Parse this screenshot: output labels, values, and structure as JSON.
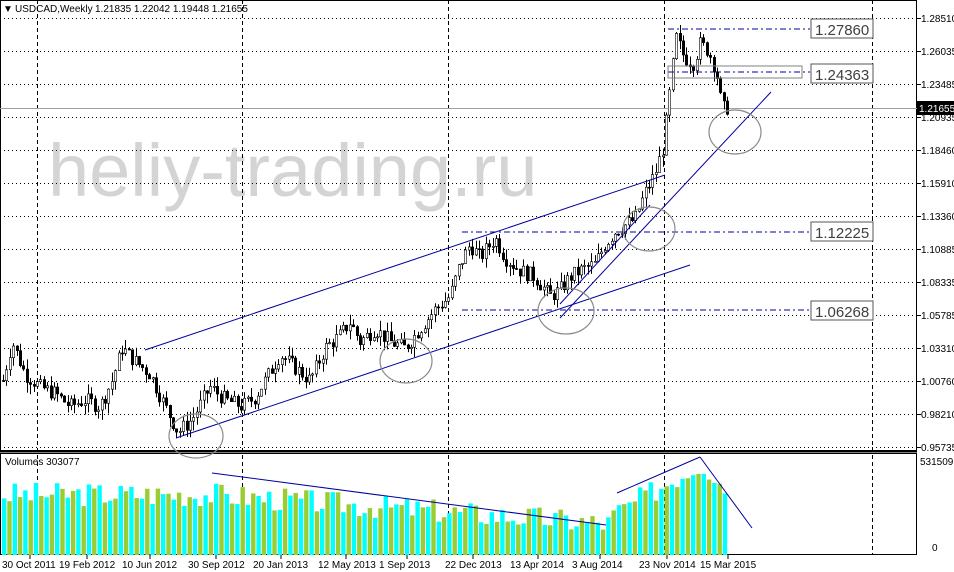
{
  "header": {
    "symbol": "USDCAD,Weekly",
    "ohlc": "1.21835 1.22042 1.19448 1.21655"
  },
  "watermark": "heliy-trading.ru",
  "volume_header": "Volumes 303077",
  "colors": {
    "background": "#ffffff",
    "grid": "#000000",
    "candle": "#000000",
    "trendline": "#0000a0",
    "level_line": "#0000a0",
    "volume_up": "#00ffff",
    "volume_down": "#9acd32",
    "watermark": "#d3d3d3",
    "circle": "#808080"
  },
  "price_axis": {
    "ticks": [
      "1.28510",
      "1.26035",
      "1.23485",
      "1.20935",
      "1.18460",
      "1.15910",
      "1.13360",
      "1.10885",
      "1.08335",
      "1.05785",
      "1.03310",
      "1.00760",
      "0.98210",
      "0.95735"
    ],
    "current_price": "1.21655"
  },
  "volume_axis": {
    "ticks": [
      "531509",
      "0"
    ]
  },
  "time_axis": {
    "labels": [
      "30 Oct 2011",
      "19 Feb 2012",
      "10 Jun 2012",
      "30 Sep 2012",
      "20 Jan 2013",
      "12 May 2013",
      "1 Sep 2013",
      "22 Dec 2013",
      "13 Apr 2014",
      "3 Aug 2014",
      "23 Nov 2014",
      "15 Mar 2015"
    ]
  },
  "levels": [
    {
      "label": "1.27860",
      "price": 1.2786
    },
    {
      "label": "1.24363",
      "price": 1.24363
    },
    {
      "label": "1.12225",
      "price": 1.12225
    },
    {
      "label": "1.06268",
      "price": 1.06268
    }
  ],
  "chart_data": [
    {
      "type": "candlestick",
      "title": "USDCAD,Weekly",
      "ylim": [
        0.955,
        1.29
      ],
      "x": [
        "30 Oct 2011",
        "19 Feb 2012",
        "10 Jun 2012",
        "30 Sep 2012",
        "20 Jan 2013",
        "12 May 2013",
        "1 Sep 2013",
        "22 Dec 2013",
        "13 Apr 2014",
        "3 Aug 2014",
        "23 Nov 2014",
        "15 Mar 2015"
      ],
      "close_approx": [
        1.012,
        0.995,
        1.03,
        0.985,
        1.005,
        1.03,
        1.035,
        1.065,
        1.095,
        1.088,
        1.15,
        1.24
      ],
      "last_bar": {
        "open": 1.21835,
        "high": 1.22042,
        "low": 1.19448,
        "close": 1.21655
      },
      "grid": true
    },
    {
      "type": "bar",
      "title": "Volumes 303077",
      "ylim": [
        0,
        531509
      ],
      "last_value": 303077
    }
  ]
}
